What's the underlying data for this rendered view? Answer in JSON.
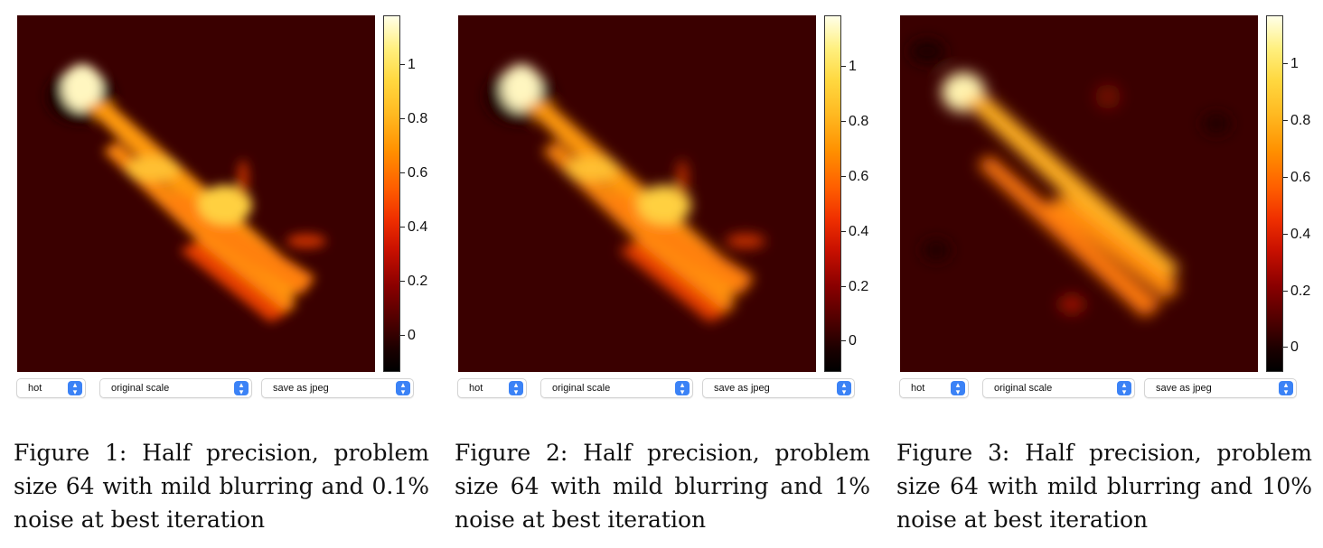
{
  "panels": [
    {
      "colormap": "hot",
      "scale": "original scale",
      "save": "save as jpeg",
      "caption": "Figure 1: Half precision, problem size 64 with mild blurring and 0.1% noise at best iteration",
      "colorbar_ticks": [
        "1",
        "0.8",
        "0.6",
        "0.4",
        "0.2",
        "0"
      ]
    },
    {
      "colormap": "hot",
      "scale": "original scale",
      "save": "save as jpeg",
      "caption": "Figure 2: Half precision, problem size 64 with mild blurring and 1% noise at best iteration",
      "colorbar_ticks": [
        "1",
        "0.8",
        "0.6",
        "0.4",
        "0.2",
        "0"
      ]
    },
    {
      "colormap": "hot",
      "scale": "original scale",
      "save": "save as jpeg",
      "caption": "Figure 3: Half precision, problem size 64 with mild blurring and 10% noise at best iteration",
      "colorbar_ticks": [
        "1",
        "0.8",
        "0.6",
        "0.4",
        "0.2",
        "0"
      ]
    }
  ],
  "colors": {
    "background": "#3a0000",
    "select_arrow": "#3b82f6"
  }
}
